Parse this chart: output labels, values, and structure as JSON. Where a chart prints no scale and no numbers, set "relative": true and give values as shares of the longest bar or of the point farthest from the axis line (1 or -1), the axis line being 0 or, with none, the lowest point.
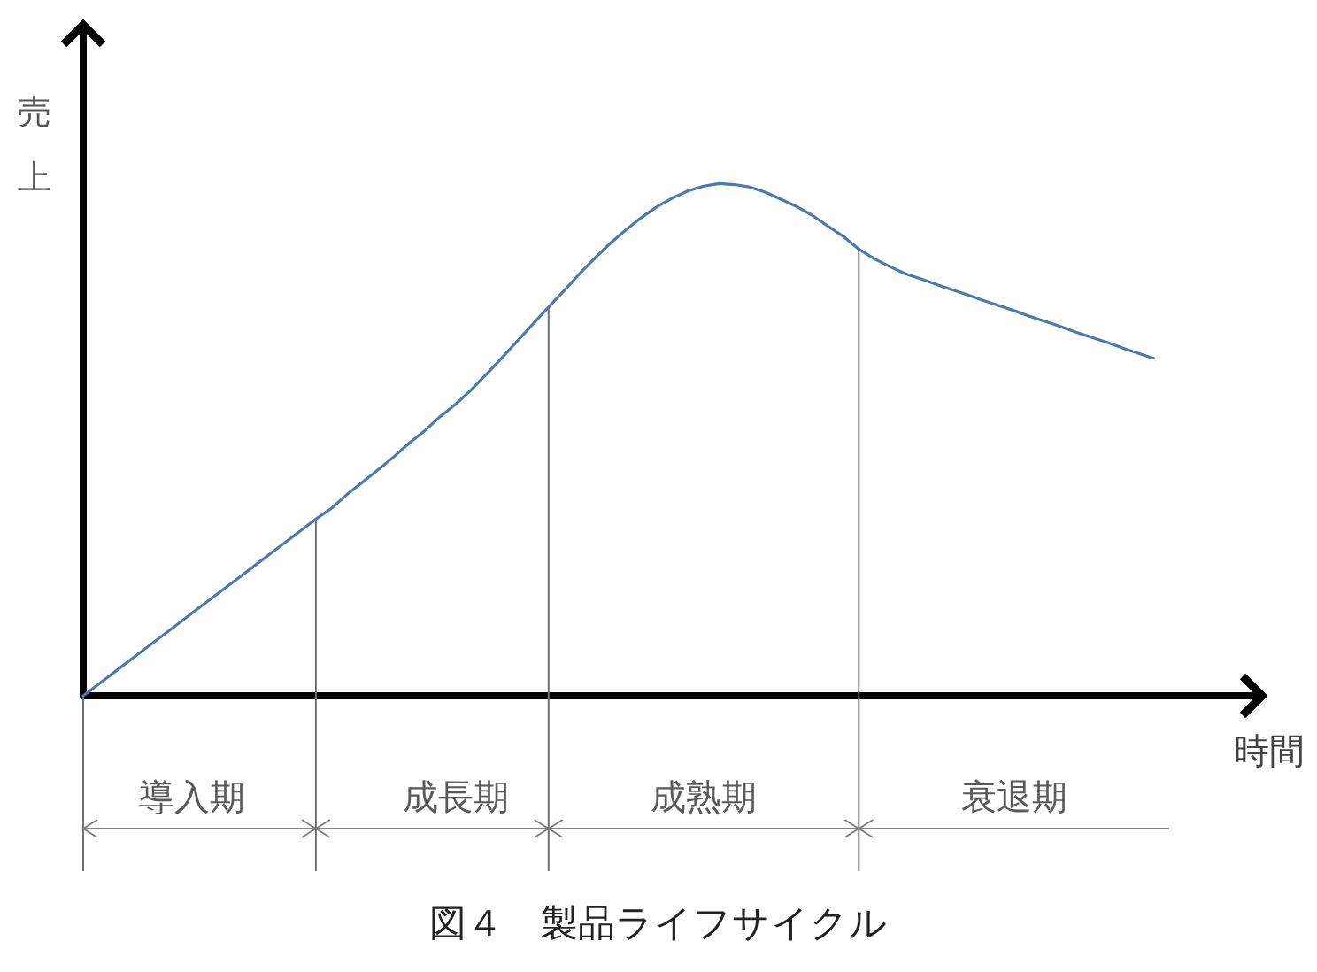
{
  "chart_data": {
    "type": "line",
    "title": "図４　製品ライフサイクル",
    "xlabel": "時間",
    "ylabel": "売上",
    "relative": true,
    "categories": [
      null,
      null,
      null,
      null,
      null,
      null,
      null,
      "導入期",
      null,
      null,
      null,
      null,
      null,
      null,
      null,
      null,
      null,
      null,
      null,
      null,
      null,
      null,
      null,
      null,
      "成長期",
      null,
      null,
      null,
      null,
      null,
      null,
      null,
      null,
      null,
      null,
      null,
      null,
      null,
      null,
      null,
      "成熟期",
      null,
      null,
      null,
      null,
      null,
      null,
      null,
      null,
      null,
      null,
      null,
      null,
      null,
      null,
      null,
      null,
      null,
      null,
      null,
      "衰退期",
      null,
      null,
      null,
      null,
      null,
      null,
      null,
      null,
      null,
      null,
      null,
      null,
      null,
      null,
      null,
      null
    ],
    "values": [
      0,
      0.023,
      0.046,
      0.069,
      0.092,
      0.115,
      0.138,
      0.161,
      0.184,
      0.207,
      0.23,
      0.253,
      0.276,
      0.299,
      0.322,
      0.345,
      0.366,
      0.393,
      0.417,
      0.441,
      0.466,
      0.493,
      0.517,
      0.545,
      0.569,
      0.597,
      0.628,
      0.66,
      0.693,
      0.726,
      0.759,
      0.791,
      0.824,
      0.855,
      0.884,
      0.91,
      0.934,
      0.955,
      0.972,
      0.986,
      0.995,
      1,
      0.998,
      0.993,
      0.983,
      0.969,
      0.955,
      0.938,
      0.917,
      0.897,
      0.872,
      0.853,
      0.838,
      0.824,
      0.814,
      0.803,
      0.793,
      0.783,
      0.772,
      0.762,
      0.752,
      0.741,
      0.731,
      0.721,
      0.71,
      0.7,
      0.69,
      0.679,
      0.669,
      0.659,
      null,
      null,
      null,
      null,
      null,
      null,
      null
    ],
    "color": "#4a7ab0"
  }
}
